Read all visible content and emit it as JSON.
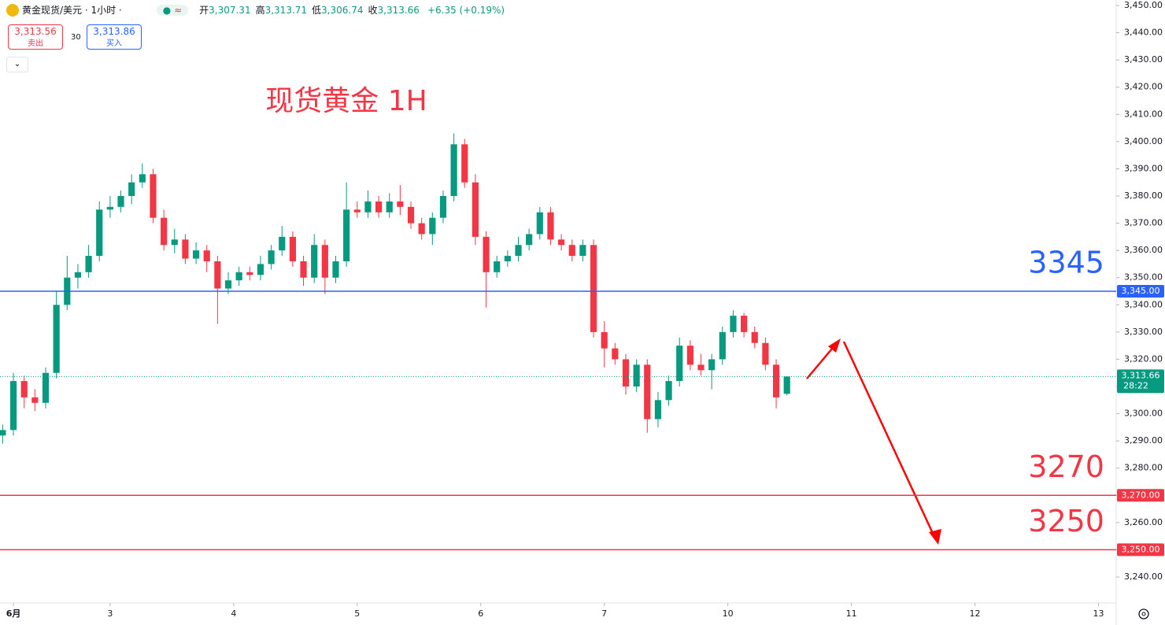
{
  "header": {
    "symbol": "黄金现货/美元 · 1小时 ·",
    "ohlc": [
      {
        "label": "开",
        "value": "3,307.31"
      },
      {
        "label": "高",
        "value": "3,313.71"
      },
      {
        "label": "低",
        "value": "3,306.74"
      },
      {
        "label": "收",
        "value": "3,313.66"
      }
    ],
    "change": "+6.35 (+0.19%)",
    "sell": {
      "price": "3,313.56",
      "label": "卖出"
    },
    "spread": "30",
    "buy": {
      "price": "3,313.86",
      "label": "买入"
    }
  },
  "chart_data": {
    "type": "candlestick",
    "title": "现货黄金 1H",
    "up_color": "#089981",
    "down_color": "#f23645",
    "x": [
      0,
      2,
      4,
      6,
      8,
      10,
      12,
      14,
      16,
      18,
      20,
      22,
      24,
      26,
      28,
      30,
      32,
      34,
      36,
      38,
      40,
      42,
      44,
      46,
      48,
      50,
      52,
      54,
      56,
      58,
      60,
      62,
      64,
      66,
      68,
      70,
      72,
      74,
      76,
      78,
      80,
      82,
      84,
      86,
      88,
      90,
      92,
      94,
      96,
      98,
      100,
      102,
      104,
      106,
      108,
      110,
      112,
      114,
      116,
      118,
      120,
      122,
      124,
      126,
      128,
      130,
      132,
      134,
      136,
      138,
      140,
      142,
      144,
      146
    ],
    "open": [
      3292,
      3294,
      3312,
      3306,
      3304,
      3315,
      3340,
      3350,
      3352,
      3358,
      3375,
      3376,
      3380,
      3385,
      3388,
      3372,
      3362,
      3364,
      3357,
      3360,
      3356,
      3346,
      3349,
      3352,
      3351,
      3355,
      3360,
      3365,
      3356,
      3350,
      3362,
      3350,
      3356,
      3375,
      3374,
      3378,
      3374,
      3378,
      3376,
      3370,
      3366,
      3372,
      3380,
      3399,
      3385,
      3365,
      3352,
      3356,
      3358,
      3362,
      3366,
      3374,
      3364,
      3362,
      3358,
      3362,
      3330,
      3324,
      3320,
      3310,
      3318,
      3298,
      3305,
      3312,
      3325,
      3318,
      3316,
      3320,
      3330,
      3336,
      3330,
      3326,
      3318,
      3307.31
    ],
    "high": [
      3296,
      3315,
      3314,
      3309,
      3317,
      3345,
      3358,
      3355,
      3362,
      3378,
      3380,
      3382,
      3388,
      3392,
      3390,
      3375,
      3368,
      3366,
      3363,
      3362,
      3358,
      3352,
      3354,
      3354,
      3358,
      3362,
      3369,
      3367,
      3358,
      3366,
      3364,
      3358,
      3385,
      3378,
      3382,
      3380,
      3381,
      3384,
      3378,
      3372,
      3374,
      3382,
      3403,
      3401,
      3388,
      3367,
      3358,
      3360,
      3365,
      3368,
      3376,
      3376,
      3366,
      3364,
      3364,
      3364,
      3334,
      3326,
      3322,
      3320,
      3320,
      3308,
      3314,
      3328,
      3327,
      3322,
      3322,
      3332,
      3338,
      3337,
      3332,
      3328,
      3320,
      3313.71
    ],
    "low": [
      3289,
      3292,
      3302,
      3301,
      3302,
      3313,
      3338,
      3346,
      3350,
      3356,
      3372,
      3374,
      3377,
      3383,
      3370,
      3360,
      3359,
      3355,
      3355,
      3352,
      3333,
      3344,
      3347,
      3349,
      3349,
      3353,
      3358,
      3354,
      3347,
      3348,
      3344,
      3348,
      3354,
      3372,
      3372,
      3372,
      3372,
      3373,
      3368,
      3364,
      3362,
      3370,
      3378,
      3383,
      3362,
      3339,
      3350,
      3354,
      3356,
      3360,
      3364,
      3362,
      3360,
      3356,
      3356,
      3328,
      3317,
      3318,
      3307,
      3308,
      3293,
      3295,
      3303,
      3310,
      3316,
      3314,
      3309,
      3318,
      3328,
      3328,
      3324,
      3316,
      3302,
      3306.74
    ],
    "close": [
      3294,
      3312,
      3306,
      3304,
      3315,
      3340,
      3350,
      3352,
      3358,
      3375,
      3376,
      3380,
      3385,
      3388,
      3372,
      3362,
      3364,
      3357,
      3360,
      3356,
      3346,
      3349,
      3352,
      3351,
      3355,
      3360,
      3365,
      3356,
      3350,
      3362,
      3350,
      3356,
      3375,
      3374,
      3378,
      3374,
      3378,
      3376,
      3370,
      3366,
      3372,
      3380,
      3399,
      3385,
      3365,
      3352,
      3356,
      3358,
      3362,
      3366,
      3374,
      3364,
      3362,
      3358,
      3362,
      3330,
      3324,
      3320,
      3310,
      3318,
      3298,
      3305,
      3312,
      3325,
      3318,
      3316,
      3320,
      3330,
      3336,
      3330,
      3326,
      3318,
      3306,
      3313.66
    ],
    "xlim": [
      -0.5,
      207.3
    ],
    "xticks": [
      {
        "value": 2,
        "label": "6月"
      },
      {
        "value": 20,
        "label": "3"
      },
      {
        "value": 43,
        "label": "4"
      },
      {
        "value": 66,
        "label": "5"
      },
      {
        "value": 89,
        "label": "6"
      },
      {
        "value": 112,
        "label": "7"
      },
      {
        "value": 135,
        "label": "10"
      },
      {
        "value": 158,
        "label": "11"
      },
      {
        "value": 181,
        "label": "12"
      },
      {
        "value": 204,
        "label": "13"
      }
    ],
    "ylim": [
      3240,
      3450
    ],
    "yticks": [
      {
        "value": 3240,
        "label": "3,240.00"
      },
      {
        "value": 3250,
        "label": "3,250.00"
      },
      {
        "value": 3260,
        "label": "3,260.00"
      },
      {
        "value": 3270,
        "label": "3,270.00"
      },
      {
        "value": 3280,
        "label": "3,280.00"
      },
      {
        "value": 3290,
        "label": "3,290.00"
      },
      {
        "value": 3300,
        "label": "3,300.00"
      },
      {
        "value": 3310,
        "label": "3,310.00"
      },
      {
        "value": 3320,
        "label": "3,320.00"
      },
      {
        "value": 3330,
        "label": "3,330.00"
      },
      {
        "value": 3340,
        "label": "3,340.00"
      },
      {
        "value": 3350,
        "label": "3,350.00"
      },
      {
        "value": 3360,
        "label": "3,360.00"
      },
      {
        "value": 3370,
        "label": "3,370.00"
      },
      {
        "value": 3380,
        "label": "3,380.00"
      },
      {
        "value": 3390,
        "label": "3,390.00"
      },
      {
        "value": 3400,
        "label": "3,400.00"
      },
      {
        "value": 3410,
        "label": "3,410.00"
      },
      {
        "value": 3420,
        "label": "3,420.00"
      },
      {
        "value": 3430,
        "label": "3,430.00"
      },
      {
        "value": 3440,
        "label": "3,440.00"
      },
      {
        "value": 3450,
        "label": "3,450.00"
      }
    ],
    "levels": [
      {
        "value": 3345,
        "label": "3,345.00",
        "annotation": "3345",
        "color": "#2962ff"
      },
      {
        "value": 3270,
        "label": "3,270.00",
        "annotation": "3270",
        "color": "#f23645"
      },
      {
        "value": 3250,
        "label": "3,250.00",
        "annotation": "3250",
        "color": "#f23645"
      }
    ],
    "current": {
      "value": 3313.66,
      "label": "3,313.66",
      "countdown": "28:22",
      "color": "#089981"
    }
  }
}
